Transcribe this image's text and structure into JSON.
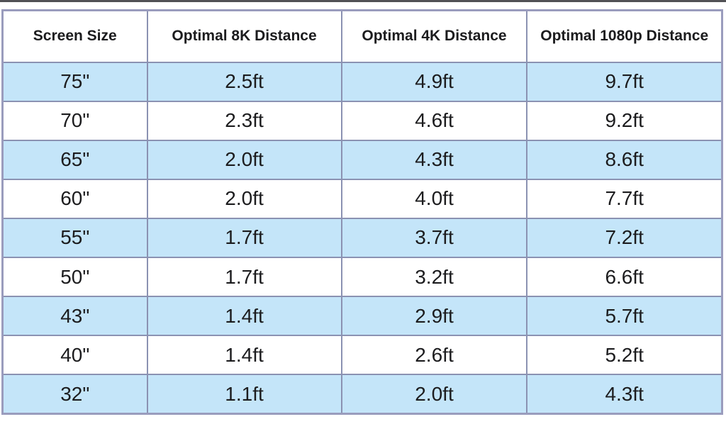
{
  "colors": {
    "background": "#ffffff",
    "row_highlight": "#c4e5f9",
    "grid_border": "#8b92b2",
    "outer_border": "#9a9cbd",
    "top_rule": "#515155",
    "text": "#1c1c1e"
  },
  "chart_data": {
    "type": "table",
    "columns": [
      "Screen Size",
      "Optimal 8K Distance",
      "Optimal 4K Distance",
      "Optimal 1080p Distance"
    ],
    "rows": [
      [
        "75\"",
        "2.5ft",
        "4.9ft",
        "9.7ft"
      ],
      [
        "70\"",
        "2.3ft",
        "4.6ft",
        "9.2ft"
      ],
      [
        "65\"",
        "2.0ft",
        "4.3ft",
        "8.6ft"
      ],
      [
        "60\"",
        "2.0ft",
        "4.0ft",
        "7.7ft"
      ],
      [
        "55\"",
        "1.7ft",
        "3.7ft",
        "7.2ft"
      ],
      [
        "50\"",
        "1.7ft",
        "3.2ft",
        "6.6ft"
      ],
      [
        "43\"",
        "1.4ft",
        "2.9ft",
        "5.7ft"
      ],
      [
        "40\"",
        "1.4ft",
        "2.6ft",
        "5.2ft"
      ],
      [
        "32\"",
        "1.1ft",
        "2.0ft",
        "4.3ft"
      ]
    ],
    "layout": {
      "striping": "alternating rows highlighted, starting with first data row",
      "column_width_percents": [
        20.1,
        27.0,
        25.8,
        27.1
      ],
      "text_align": "center",
      "grid": "on"
    }
  }
}
